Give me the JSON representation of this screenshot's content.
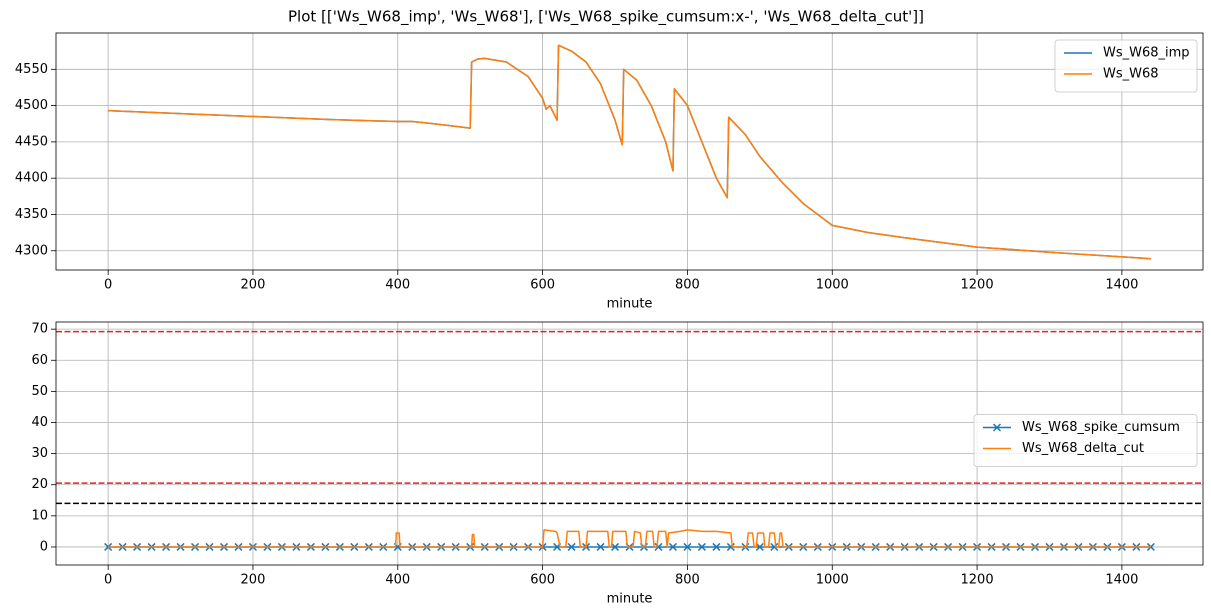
{
  "title": "Plot [['Ws_W68_imp', 'Ws_W68'], ['Ws_W68_spike_cumsum:x-', 'Ws_W68_delta_cut']]",
  "chart_data": [
    {
      "type": "line",
      "xlabel": "minute",
      "grid": true,
      "legend": "upper right",
      "xlim": [
        -72,
        1512
      ],
      "ylim": [
        4273.5,
        4600
      ],
      "xticks": [
        0,
        200,
        400,
        600,
        800,
        1000,
        1200,
        1400
      ],
      "yticks": [
        4300,
        4350,
        4400,
        4450,
        4500,
        4550
      ],
      "x": [
        0,
        100,
        200,
        300,
        400,
        420,
        450,
        500,
        502,
        510,
        520,
        550,
        580,
        600,
        605,
        610,
        620,
        622,
        640,
        660,
        680,
        700,
        710,
        712,
        730,
        750,
        770,
        780,
        782,
        800,
        820,
        840,
        855,
        857,
        880,
        900,
        930,
        960,
        1000,
        1050,
        1100,
        1200,
        1300,
        1440
      ],
      "series": [
        {
          "name": "Ws_W68_imp",
          "color": "#1f77b4",
          "values": [
            4493,
            4489,
            4485,
            4481,
            4478,
            4478,
            4475,
            4469,
            4560,
            4564,
            4565,
            4560,
            4540,
            4510,
            4495,
            4500,
            4480,
            4583,
            4575,
            4560,
            4530,
            4480,
            4446,
            4550,
            4535,
            4500,
            4450,
            4410,
            4523,
            4500,
            4450,
            4400,
            4373,
            4484,
            4460,
            4430,
            4395,
            4365,
            4335,
            4325,
            4318,
            4305,
            4298,
            4289
          ]
        },
        {
          "name": "Ws_W68",
          "color": "#ff7f0e",
          "values": [
            4493,
            4489,
            4485,
            4481,
            4478,
            4478,
            4475,
            4469,
            4560,
            4564,
            4565,
            4560,
            4540,
            4510,
            4495,
            4500,
            4480,
            4583,
            4575,
            4560,
            4530,
            4480,
            4446,
            4550,
            4535,
            4500,
            4450,
            4410,
            4523,
            4500,
            4450,
            4400,
            4373,
            4484,
            4460,
            4430,
            4395,
            4365,
            4335,
            4325,
            4318,
            4305,
            4298,
            4289
          ]
        }
      ]
    },
    {
      "type": "line",
      "xlabel": "minute",
      "grid": true,
      "legend": "center right",
      "xlim": [
        -72,
        1512
      ],
      "ylim": [
        -5.8,
        72.3
      ],
      "xticks": [
        0,
        200,
        400,
        600,
        800,
        1000,
        1200,
        1400
      ],
      "yticks": [
        0,
        10,
        20,
        30,
        40,
        50,
        60,
        70
      ],
      "hlines": [
        {
          "value": 69.2,
          "color": "#e5201f"
        },
        {
          "value": 20.5,
          "color": "#e5201f"
        },
        {
          "value": 14,
          "color": "#000000"
        }
      ],
      "series": [
        {
          "name": "Ws_W68_spike_cumsum",
          "color": "#1f77b4",
          "marker": "x",
          "x": [
            0,
            20,
            40,
            60,
            80,
            100,
            120,
            140,
            160,
            180,
            200,
            220,
            240,
            260,
            280,
            300,
            320,
            340,
            360,
            380,
            400,
            420,
            440,
            460,
            480,
            500,
            520,
            540,
            560,
            580,
            600,
            620,
            640,
            660,
            680,
            700,
            720,
            740,
            760,
            780,
            800,
            820,
            840,
            860,
            880,
            900,
            920,
            940,
            960,
            980,
            1000,
            1020,
            1040,
            1060,
            1080,
            1100,
            1120,
            1140,
            1160,
            1180,
            1200,
            1220,
            1240,
            1260,
            1280,
            1300,
            1320,
            1340,
            1360,
            1380,
            1400,
            1420,
            1440
          ],
          "values": [
            0,
            0,
            0,
            0,
            0,
            0,
            0,
            0,
            0,
            0,
            0,
            0,
            0,
            0,
            0,
            0,
            0,
            0,
            0,
            0,
            0,
            0,
            0,
            0,
            0,
            0,
            0,
            0,
            0,
            0,
            0,
            0,
            0,
            0,
            0,
            0,
            0,
            0,
            0,
            0,
            0,
            0,
            0,
            0,
            0,
            0,
            0,
            0,
            0,
            0,
            0,
            0,
            0,
            0,
            0,
            0,
            0,
            0,
            0,
            0,
            0,
            0,
            0,
            0,
            0,
            0,
            0,
            0,
            0,
            0,
            0,
            0,
            0
          ]
        },
        {
          "name": "Ws_W68_delta_cut",
          "color": "#ff7f0e",
          "x": [
            0,
            397,
            398,
            402,
            403,
            502,
            503,
            505,
            506,
            600,
            602,
            618,
            620,
            624,
            632,
            634,
            650,
            652,
            660,
            662,
            690,
            692,
            695,
            697,
            715,
            717,
            725,
            727,
            735,
            737,
            742,
            744,
            752,
            754,
            758,
            760,
            770,
            772,
            774,
            790,
            800,
            820,
            840,
            860,
            862,
            882,
            884,
            890,
            892,
            895,
            897,
            905,
            907,
            912,
            914,
            920,
            922,
            926,
            928,
            930,
            932,
            1440
          ],
          "values": [
            0,
            0,
            4.5,
            4.5,
            0,
            0,
            4,
            4,
            0,
            0,
            5.5,
            5,
            4.5,
            0,
            0,
            5,
            5,
            0,
            0,
            5,
            5,
            0,
            0,
            5,
            5,
            0,
            0,
            5,
            4.5,
            0,
            0,
            5,
            5,
            0,
            0,
            5,
            5,
            0,
            4.5,
            5,
            5.5,
            5,
            5,
            4.5,
            0,
            0,
            4.5,
            4.5,
            0,
            0,
            4.5,
            4.5,
            0,
            0,
            4.5,
            4.5,
            0,
            0,
            4.5,
            4.5,
            0,
            0
          ]
        }
      ]
    }
  ]
}
